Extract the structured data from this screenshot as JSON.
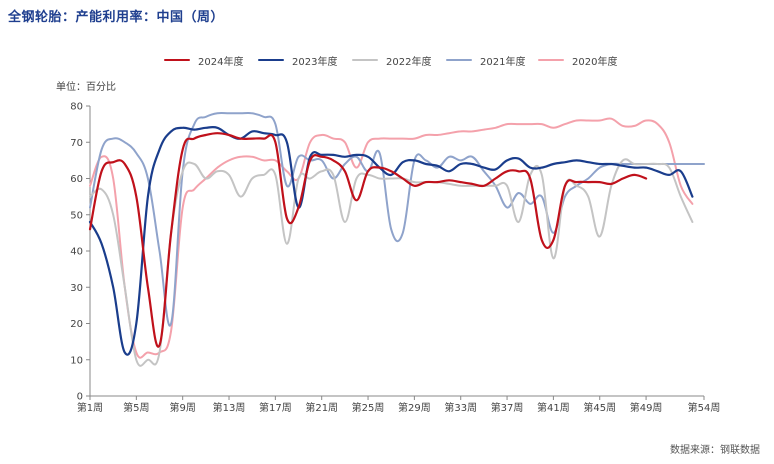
{
  "title": "全钢轮胎：产能利用率：中国（周）",
  "unit_label": "单位：百分比",
  "source": "数据来源：钢联数据",
  "chart_data": {
    "type": "line",
    "xlabel": "",
    "ylabel": "",
    "ylim": [
      0,
      80
    ],
    "yticks": [
      0,
      10,
      20,
      30,
      40,
      50,
      60,
      70,
      80
    ],
    "xlim": [
      1,
      54
    ],
    "xticks": [
      1,
      5,
      9,
      13,
      17,
      21,
      25,
      29,
      33,
      37,
      41,
      45,
      49,
      54
    ],
    "xtick_labels": [
      "第1周",
      "第5周",
      "第9周",
      "第13周",
      "第17周",
      "第21周",
      "第25周",
      "第29周",
      "第33周",
      "第37周",
      "第41周",
      "第45周",
      "第49周",
      "第54周"
    ],
    "grid": false,
    "legend_position": "top-center",
    "series": [
      {
        "name": "2024年度",
        "color": "#c0111b",
        "x": [
          1,
          2,
          3,
          4,
          5,
          6,
          7,
          8,
          9,
          10,
          11,
          12,
          13,
          14,
          15,
          16,
          17,
          18,
          19,
          20,
          21,
          22,
          23,
          24,
          25,
          26,
          27,
          28,
          29,
          30,
          31,
          32,
          33,
          34,
          35,
          36,
          37,
          38,
          39,
          40,
          41,
          42,
          43,
          44,
          45,
          46,
          47,
          48,
          49
        ],
        "y": [
          46,
          62,
          64.5,
          64,
          55,
          30,
          14,
          45,
          68,
          71,
          72,
          72.5,
          72,
          71,
          71,
          71,
          70,
          49,
          52,
          65,
          66,
          65,
          62,
          54,
          62,
          63,
          62,
          60,
          58,
          59,
          59,
          59.5,
          59,
          58.5,
          58,
          60,
          62,
          62,
          60,
          43,
          43,
          58,
          59,
          59,
          59,
          58.5,
          60,
          61,
          60
        ]
      },
      {
        "name": "2023年度",
        "color": "#1a3d8c",
        "x": [
          1,
          2,
          3,
          4,
          5,
          6,
          7,
          8,
          9,
          10,
          11,
          12,
          13,
          14,
          15,
          16,
          17,
          18,
          19,
          20,
          21,
          22,
          23,
          24,
          25,
          26,
          27,
          28,
          29,
          30,
          31,
          32,
          33,
          34,
          35,
          36,
          37,
          38,
          39,
          40,
          41,
          42,
          43,
          44,
          45,
          46,
          47,
          48,
          49,
          50,
          51,
          52,
          53
        ],
        "y": [
          48,
          42,
          30,
          12,
          20,
          55,
          68,
          73,
          74,
          73.5,
          74,
          74,
          72,
          71,
          73,
          72.5,
          72,
          70,
          52,
          66,
          66.5,
          66.5,
          66,
          66.5,
          66,
          63,
          61,
          64.5,
          65,
          64,
          63.5,
          62,
          64,
          64,
          63,
          62.5,
          65,
          65.5,
          63,
          63,
          64,
          64.5,
          65,
          64.5,
          64,
          64,
          63.5,
          63,
          63,
          62,
          61,
          62,
          55
        ]
      },
      {
        "name": "2022年度",
        "color": "#c4c4c4",
        "x": [
          1,
          2,
          3,
          4,
          5,
          6,
          7,
          8,
          9,
          10,
          11,
          12,
          13,
          14,
          15,
          16,
          17,
          18,
          19,
          20,
          21,
          22,
          23,
          24,
          25,
          26,
          27,
          28,
          29,
          30,
          31,
          32,
          33,
          34,
          35,
          36,
          37,
          38,
          39,
          40,
          41,
          42,
          43,
          44,
          45,
          46,
          47,
          48,
          49,
          50,
          51,
          52,
          53
        ],
        "y": [
          55,
          57,
          50,
          30,
          10,
          10,
          12,
          45,
          62,
          64,
          60,
          62,
          61,
          55,
          60,
          61,
          61,
          42,
          60,
          60,
          62,
          61,
          48,
          60,
          61,
          60,
          60,
          60,
          59,
          59,
          59,
          58.5,
          58,
          58,
          58,
          58,
          58,
          48,
          61,
          61,
          38,
          58,
          58,
          55,
          44,
          58,
          65,
          64,
          64,
          64,
          63,
          55,
          48
        ]
      },
      {
        "name": "2021年度",
        "color": "#8fa3cb",
        "x": [
          1,
          2,
          3,
          4,
          5,
          6,
          7,
          8,
          9,
          10,
          11,
          12,
          13,
          14,
          15,
          16,
          17,
          18,
          19,
          20,
          21,
          22,
          23,
          24,
          25,
          26,
          27,
          28,
          29,
          30,
          31,
          32,
          33,
          34,
          35,
          36,
          37,
          38,
          39,
          40,
          41,
          42,
          43,
          44,
          45,
          46,
          47,
          48,
          49,
          50,
          51,
          52,
          53,
          54
        ],
        "y": [
          52,
          68,
          71,
          70,
          67,
          60,
          40,
          20,
          62,
          75,
          77,
          78,
          78,
          78,
          78,
          77,
          75,
          58,
          66,
          65,
          65,
          60,
          64,
          66,
          62,
          67,
          46,
          45,
          65,
          65,
          63,
          66,
          65,
          66,
          62,
          58,
          52,
          56,
          53,
          55,
          45,
          55,
          58,
          60,
          63,
          64,
          64,
          64,
          64,
          64,
          64,
          64,
          64,
          64
        ]
      },
      {
        "name": "2020年度",
        "color": "#f4a1ab",
        "x": [
          1,
          2,
          3,
          4,
          5,
          6,
          7,
          8,
          9,
          10,
          11,
          12,
          13,
          14,
          15,
          16,
          17,
          18,
          19,
          20,
          21,
          22,
          23,
          24,
          25,
          26,
          27,
          28,
          29,
          30,
          31,
          32,
          33,
          34,
          35,
          36,
          37,
          38,
          39,
          40,
          41,
          42,
          43,
          44,
          45,
          46,
          47,
          48,
          49,
          50,
          51,
          52,
          53
        ],
        "y": [
          58,
          66,
          60,
          30,
          12,
          12,
          12,
          18,
          52,
          57,
          60,
          63,
          65,
          66,
          66,
          65,
          65,
          62,
          60,
          70,
          72,
          71,
          70,
          63,
          70,
          71,
          71,
          71,
          71,
          72,
          72,
          72.5,
          73,
          73,
          73.5,
          74,
          75,
          75,
          75,
          75,
          74,
          75,
          76,
          76,
          76,
          76.5,
          74.5,
          74.5,
          76,
          75,
          70,
          58,
          53
        ]
      }
    ]
  }
}
